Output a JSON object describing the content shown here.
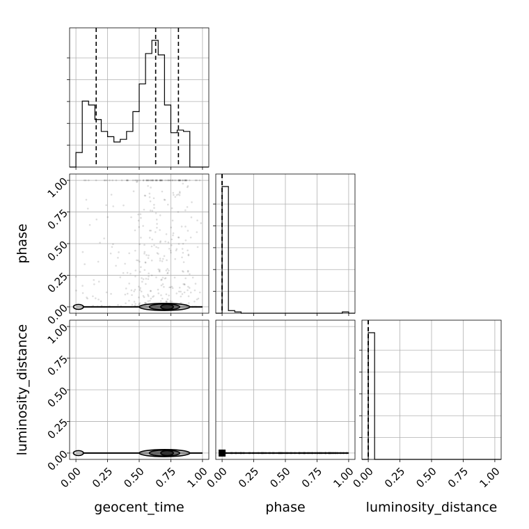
{
  "chart_data": {
    "type": "corner",
    "parameters": [
      "geocent_time",
      "phase",
      "luminosity_distance"
    ],
    "axis_labels": {
      "x": [
        "geocent_time",
        "phase",
        "luminosity_distance"
      ],
      "y": [
        "phase",
        "luminosity_distance"
      ]
    },
    "tick_labels": [
      "0.00",
      "0.25",
      "0.50",
      "0.75",
      "1.00"
    ],
    "range": [
      -0.05,
      1.05
    ],
    "grid": true,
    "quantiles": {
      "geocent_time": [
        0.16,
        0.63,
        0.81
      ],
      "phase": [
        0.0,
        0.0,
        0.0
      ],
      "luminosity_distance": [
        0.0,
        0.0,
        0.0
      ]
    },
    "histograms": {
      "geocent_time": {
        "bin_edges": [
          -0.05,
          0.0,
          0.05,
          0.1,
          0.15,
          0.2,
          0.25,
          0.3,
          0.35,
          0.4,
          0.45,
          0.5,
          0.55,
          0.6,
          0.65,
          0.7,
          0.75,
          0.8,
          0.85,
          0.9,
          0.95,
          1.0,
          1.05
        ],
        "counts": [
          0,
          0.11,
          0.5,
          0.47,
          0.36,
          0.27,
          0.23,
          0.19,
          0.21,
          0.27,
          0.42,
          0.63,
          0.86,
          0.96,
          0.85,
          0.47,
          0.26,
          0.28,
          0.27,
          0,
          0,
          0
        ]
      },
      "phase": {
        "bin_edges": [
          -0.05,
          0.0,
          0.05,
          0.1,
          0.15,
          0.2,
          0.25,
          0.3,
          0.35,
          0.4,
          0.45,
          0.5,
          0.55,
          0.6,
          0.65,
          0.7,
          0.75,
          0.8,
          0.85,
          0.9,
          0.95,
          1.0,
          1.05
        ],
        "counts": [
          0,
          0.97,
          0.02,
          0.01,
          0.0,
          0.0,
          0.0,
          0.0,
          0.0,
          0.0,
          0.0,
          0.0,
          0.0,
          0.0,
          0.0,
          0.0,
          0.0,
          0.0,
          0.0,
          0.0,
          0.01,
          0.0
        ]
      },
      "luminosity_distance": {
        "bin_edges": [
          -0.05,
          0.0,
          0.05,
          0.1,
          0.15,
          0.2,
          0.25,
          0.3,
          0.35,
          0.4,
          0.45,
          0.5,
          0.55,
          0.6,
          0.65,
          0.7,
          0.75,
          0.8,
          0.85,
          0.9,
          0.95,
          1.0,
          1.05
        ],
        "counts": [
          0,
          1.0,
          0,
          0,
          0,
          0,
          0,
          0,
          0,
          0,
          0,
          0,
          0,
          0,
          0,
          0,
          0,
          0,
          0,
          0,
          0,
          0
        ]
      }
    },
    "scatter_panels": [
      {
        "x": "geocent_time",
        "y": "phase",
        "description_points": "scattered samples concentrated near phase 0 and 1",
        "contours": [
          {
            "center": [
              0.02,
              0.0
            ],
            "halfwidth": 0.04,
            "halfheight": 0.01
          },
          {
            "center": [
              0.7,
              0.0
            ],
            "halfwidth": 0.2,
            "halfheight": 0.02
          },
          {
            "center": [
              0.7,
              0.0
            ],
            "halfwidth": 0.12,
            "halfheight": 0.015
          },
          {
            "center": [
              0.72,
              0.0
            ],
            "halfwidth": 0.05,
            "halfheight": 0.01
          }
        ]
      },
      {
        "x": "geocent_time",
        "y": "luminosity_distance",
        "contours": [
          {
            "center": [
              0.02,
              0.0
            ],
            "halfwidth": 0.04,
            "halfheight": 0.01
          },
          {
            "center": [
              0.7,
              0.0
            ],
            "halfwidth": 0.2,
            "halfheight": 0.02
          },
          {
            "center": [
              0.7,
              0.0
            ],
            "halfwidth": 0.12,
            "halfheight": 0.015
          },
          {
            "center": [
              0.72,
              0.0
            ],
            "halfwidth": 0.05,
            "halfheight": 0.01
          }
        ]
      },
      {
        "x": "phase",
        "y": "luminosity_distance",
        "band_y": 0.0,
        "band_x_range": [
          0.0,
          1.0
        ]
      }
    ]
  }
}
